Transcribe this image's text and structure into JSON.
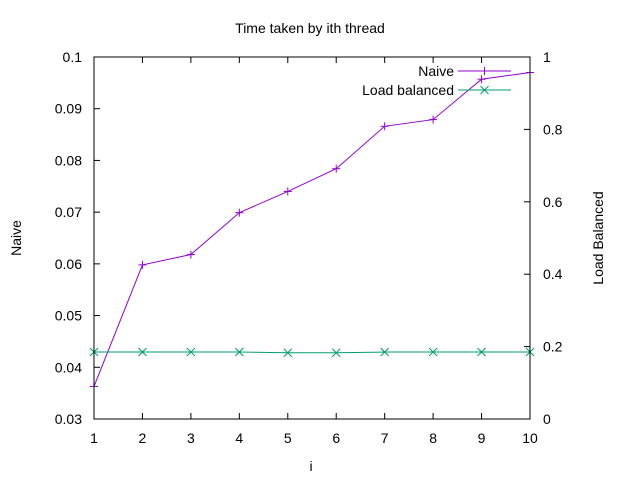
{
  "chart_data": {
    "type": "line",
    "title": "Time taken by ith thread",
    "xlabel": "i",
    "ylabel": "Naive",
    "y2label": "Load Balanced",
    "xlim": [
      1,
      10
    ],
    "ylim": [
      0.03,
      0.1
    ],
    "y2lim": [
      0,
      1
    ],
    "x_ticks": [
      "1",
      "2",
      "3",
      "4",
      "5",
      "6",
      "7",
      "8",
      "9",
      "10"
    ],
    "y_ticks": [
      "0.03",
      "0.04",
      "0.05",
      "0.06",
      "0.07",
      "0.08",
      "0.09",
      "0.1"
    ],
    "y2_ticks": [
      "0",
      "0.2",
      "0.4",
      "0.6",
      "0.8",
      "1"
    ],
    "legend_position": "top-right",
    "grid": false,
    "series": [
      {
        "name": "Naive",
        "axis": "left",
        "marker": "+",
        "color": "#9400d3",
        "x": [
          1,
          2,
          3,
          4,
          5,
          6,
          7,
          8,
          9,
          10
        ],
        "values": [
          0.0363,
          0.0598,
          0.0618,
          0.0699,
          0.074,
          0.0784,
          0.0866,
          0.0879,
          0.0957,
          0.097
        ]
      },
      {
        "name": "Load balanced",
        "axis": "right",
        "marker": "x",
        "color": "#009e73",
        "x": [
          1,
          2,
          3,
          4,
          5,
          6,
          7,
          8,
          9,
          10
        ],
        "values": [
          0.185,
          0.185,
          0.185,
          0.185,
          0.183,
          0.183,
          0.185,
          0.185,
          0.185,
          0.185
        ]
      }
    ]
  }
}
